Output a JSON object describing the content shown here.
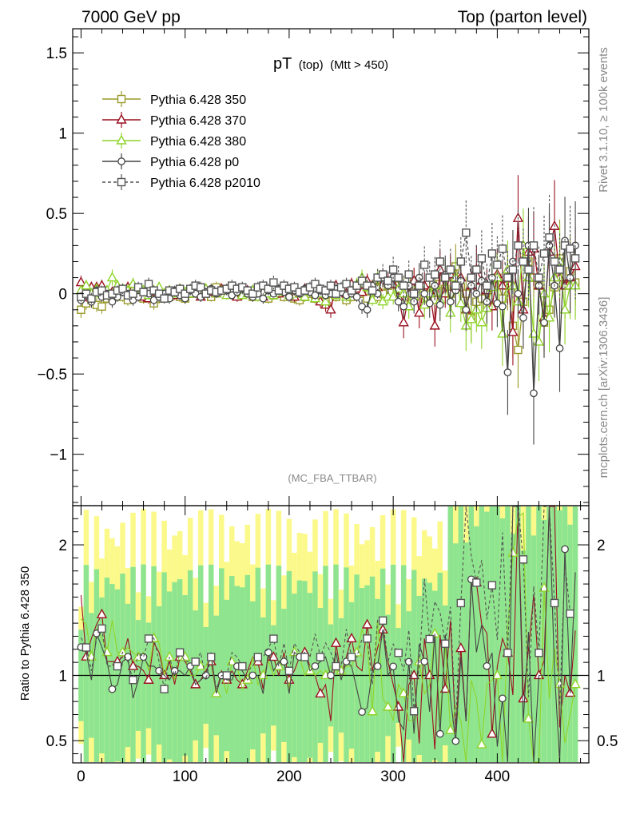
{
  "header": {
    "left": "7000 GeV pp",
    "right": "Top (parton level)"
  },
  "title": {
    "main": "pT",
    "sub1": "(top)",
    "sub2": "(Mtt > 450)"
  },
  "watermark": "(MC_FBA_TTBAR)",
  "side_right_top": "Rivet 3.1.10, ≥ 100k events",
  "side_right_bottom": "mcplots.cern.ch [arXiv:1306.3436]",
  "ratio_ylabel": "Ratio to Pythia 6.428 350",
  "legend": [
    {
      "label": "Pythia 6.428 350",
      "color": "#9a9a2a",
      "marker": "square",
      "dash": false
    },
    {
      "label": "Pythia 6.428 370",
      "color": "#9b1020",
      "marker": "triangle",
      "dash": false
    },
    {
      "label": "Pythia 6.428 380",
      "color": "#8fd42a",
      "marker": "triangle",
      "dash": false
    },
    {
      "label": "Pythia 6.428 p0",
      "color": "#444444",
      "marker": "circle",
      "dash": false
    },
    {
      "label": "Pythia 6.428 p2010",
      "color": "#555555",
      "marker": "square",
      "dash": true
    }
  ],
  "chart_data": {
    "type": "line",
    "xlim": [
      -8,
      488
    ],
    "ylim_main": [
      -1.32,
      1.65
    ],
    "ylim_ratio": [
      0.33,
      2.3
    ],
    "x_ticks": [
      "0",
      "100",
      "200",
      "300",
      "400"
    ],
    "y_ticks_main": [
      "1.5",
      "1",
      "0.5",
      "0",
      "−0.5",
      "−1"
    ],
    "y_ticks_ratio": [
      "2",
      "1",
      "0.5"
    ],
    "x": [
      0,
      5,
      10,
      15,
      20,
      25,
      30,
      35,
      40,
      45,
      50,
      55,
      60,
      65,
      70,
      75,
      80,
      85,
      90,
      95,
      100,
      105,
      110,
      115,
      120,
      125,
      130,
      135,
      140,
      145,
      150,
      155,
      160,
      165,
      170,
      175,
      180,
      185,
      190,
      195,
      200,
      205,
      210,
      215,
      220,
      225,
      230,
      235,
      240,
      245,
      250,
      255,
      260,
      265,
      270,
      275,
      280,
      285,
      290,
      295,
      300,
      305,
      310,
      315,
      320,
      325,
      330,
      335,
      340,
      345,
      350,
      355,
      360,
      365,
      370,
      375,
      380,
      385,
      390,
      395,
      400,
      405,
      410,
      415,
      420,
      425,
      430,
      435,
      440,
      445,
      450,
      455,
      460,
      465,
      470,
      475
    ],
    "series": [
      {
        "name": "Pythia 6.428 350",
        "values": [
          -0.1,
          -0.06,
          -0.04,
          -0.07,
          -0.08,
          -0.03,
          -0.02,
          0.0,
          -0.02,
          -0.04,
          0.01,
          -0.01,
          -0.03,
          -0.02,
          -0.06,
          -0.03,
          0.0,
          -0.02,
          0.01,
          -0.02,
          -0.03,
          0.0,
          0.02,
          -0.01,
          0.01,
          -0.02,
          0.04,
          0.02,
          0.03,
          0.0,
          -0.01,
          0.02,
          0.01,
          -0.02,
          0.0,
          0.01,
          -0.03,
          -0.01,
          0.0,
          -0.02,
          0.02,
          -0.03,
          -0.04,
          -0.02,
          0.0,
          -0.03,
          -0.01,
          -0.05,
          0.0,
          -0.02,
          0.02,
          -0.04,
          -0.02,
          0.01,
          0.0,
          -0.03,
          0.04,
          -0.02,
          0.0,
          0.05,
          0.08,
          0.05,
          0.04,
          0.02,
          0.08,
          0.03,
          -0.03,
          0.02,
          -0.04,
          0.06,
          0.03,
          0.0,
          0.17,
          0.04,
          0.0,
          -0.15,
          -0.05,
          -0.03,
          -0.07,
          0.05,
          0.1,
          -0.03,
          0.05,
          -0.2,
          -0.35,
          -0.05,
          0.2,
          0.1,
          0.05,
          -0.18,
          -0.1,
          0.04,
          0.22,
          0.05,
          0.14,
          0.07
        ]
      },
      {
        "name": "Pythia 6.428 370",
        "values": [
          0.07,
          -0.02,
          0.04,
          0.04,
          0.05,
          0.0,
          0.01,
          0.03,
          0.02,
          0.04,
          0.03,
          0.01,
          -0.02,
          -0.03,
          0.01,
          0.02,
          0.0,
          0.01,
          -0.01,
          0.02,
          0.0,
          0.01,
          0.0,
          -0.02,
          0.02,
          0.01,
          0.0,
          0.03,
          0.02,
          0.01,
          -0.02,
          0.0,
          0.02,
          0.02,
          0.03,
          -0.02,
          0.01,
          0.03,
          0.0,
          0.03,
          0.01,
          -0.02,
          0.0,
          0.03,
          0.02,
          -0.03,
          -0.05,
          -0.07,
          -0.1,
          0.05,
          0.02,
          0.0,
          0.06,
          0.03,
          0.01,
          0.08,
          0.05,
          0.04,
          0.1,
          0.08,
          0.06,
          -0.02,
          -0.18,
          0.0,
          0.08,
          -0.12,
          0.05,
          0.02,
          -0.2,
          0.15,
          0.0,
          0.12,
          0.04,
          0.1,
          -0.1,
          0.05,
          0.15,
          0.08,
          0.02,
          -0.08,
          0.12,
          0.05,
          0.1,
          -0.24,
          0.47,
          -0.1,
          0.26,
          0.28,
          0.05,
          -0.15,
          0.26,
          0.42,
          0.1,
          0.05,
          0.1,
          0.17
        ]
      },
      {
        "name": "Pythia 6.428 380",
        "values": [
          0.02,
          0.05,
          0.0,
          0.03,
          0.0,
          0.02,
          0.1,
          0.05,
          0.03,
          0.02,
          0.06,
          0.03,
          0.02,
          -0.01,
          0.02,
          0.04,
          0.0,
          0.02,
          0.0,
          0.03,
          0.01,
          0.0,
          0.02,
          0.01,
          0.03,
          0.02,
          0.0,
          0.02,
          -0.01,
          0.03,
          0.01,
          -0.01,
          0.0,
          0.02,
          -0.02,
          0.01,
          0.0,
          -0.01,
          0.02,
          0.01,
          -0.01,
          0.02,
          0.0,
          -0.02,
          0.01,
          -0.03,
          0.0,
          -0.05,
          0.02,
          -0.01,
          0.03,
          -0.02,
          0.0,
          0.06,
          0.1,
          0.04,
          -0.04,
          0.1,
          -0.05,
          -0.02,
          -0.02,
          0.03,
          0.0,
          -0.08,
          -0.02,
          0.06,
          -0.07,
          0.0,
          0.05,
          -0.04,
          0.1,
          -0.12,
          0.1,
          -0.06,
          -0.2,
          -0.16,
          -0.1,
          -0.18,
          -0.09,
          0.04,
          0.1,
          -0.25,
          0.15,
          0.05,
          -0.05,
          0.3,
          0.1,
          -0.25,
          -0.3,
          0.0,
          -0.15,
          0.1,
          0.2,
          -0.1,
          0.05,
          0.05
        ]
      },
      {
        "name": "Pythia 6.428 p0",
        "values": [
          -0.04,
          -0.01,
          -0.05,
          0.02,
          -0.02,
          0.0,
          -0.05,
          -0.02,
          0.01,
          0.0,
          -0.04,
          -0.02,
          0.01,
          0.0,
          -0.04,
          -0.02,
          0.0,
          -0.03,
          0.02,
          -0.01,
          -0.03,
          0.02,
          0.0,
          -0.02,
          0.01,
          0.03,
          0.0,
          0.02,
          0.02,
          -0.01,
          0.01,
          0.03,
          0.0,
          -0.02,
          0.0,
          -0.03,
          0.02,
          0.0,
          0.03,
          0.01,
          -0.02,
          0.02,
          0.0,
          0.03,
          0.01,
          -0.01,
          0.02,
          -0.01,
          0.0,
          0.03,
          0.01,
          -0.01,
          0.0,
          -0.02,
          -0.08,
          -0.1,
          0.05,
          0.0,
          0.1,
          0.05,
          0.1,
          -0.05,
          -0.08,
          0.05,
          -0.05,
          0.1,
          0.0,
          -0.06,
          0.05,
          -0.07,
          0.12,
          -0.05,
          0.02,
          0.08,
          -0.1,
          0.05,
          0.0,
          0.08,
          -0.05,
          0.1,
          -0.06,
          -0.08,
          -0.49,
          0.2,
          0.0,
          -0.15,
          0.3,
          -0.62,
          0.05,
          -0.18,
          0.3,
          0.05,
          -0.34,
          0.33,
          0.1,
          0.3
        ]
      },
      {
        "name": "Pythia 6.428 p2010",
        "values": [
          -0.02,
          0.0,
          -0.03,
          0.01,
          0.02,
          -0.01,
          0.0,
          0.02,
          0.03,
          -0.01,
          0.0,
          0.04,
          0.01,
          0.06,
          0.02,
          0.0,
          -0.03,
          0.02,
          0.01,
          0.03,
          0.0,
          0.03,
          0.05,
          0.04,
          0.0,
          0.02,
          0.01,
          0.02,
          0.03,
          0.05,
          0.03,
          0.04,
          0.02,
          0.0,
          0.04,
          0.05,
          0.03,
          0.07,
          0.02,
          0.05,
          0.03,
          0.04,
          0.01,
          0.02,
          0.04,
          0.06,
          0.03,
          0.02,
          0.05,
          0.0,
          0.04,
          0.06,
          0.02,
          0.05,
          0.08,
          0.05,
          0.02,
          0.1,
          0.12,
          0.08,
          0.15,
          0.1,
          0.05,
          0.12,
          0.0,
          0.05,
          0.18,
          0.1,
          0.12,
          0.2,
          0.1,
          0.15,
          0.05,
          0.2,
          0.38,
          0.1,
          0.15,
          0.22,
          0.05,
          0.25,
          0.18,
          0.28,
          0.1,
          0.15,
          0.3,
          0.2,
          0.15,
          0.3,
          0.1,
          0.25,
          0.35,
          0.2,
          0.15,
          0.3,
          0.28,
          0.22
        ]
      }
    ]
  }
}
